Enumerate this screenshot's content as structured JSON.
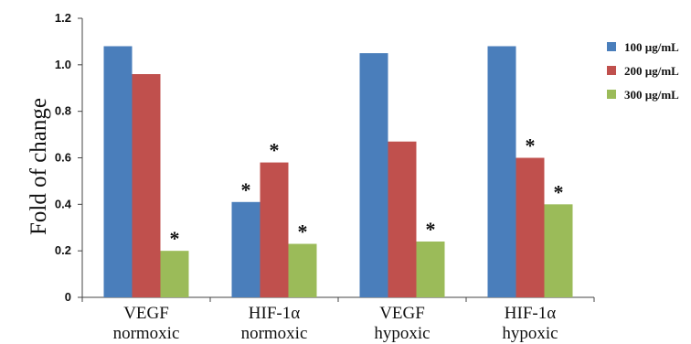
{
  "chart_data": {
    "type": "bar",
    "title": "",
    "xlabel": "",
    "ylabel": "Fold of change",
    "ylim": [
      0,
      1.2
    ],
    "yticks": [
      "0",
      "0.2",
      "0.4",
      "0.6",
      "0.8",
      "1.0",
      "1.2"
    ],
    "ytick_values": [
      0,
      0.2,
      0.4,
      0.6,
      0.8,
      1.0,
      1.2
    ],
    "categories": [
      {
        "line1": "VEGF",
        "line2": "normoxic"
      },
      {
        "line1": "HIF-1α",
        "line2": "normoxic"
      },
      {
        "line1": "VEGF",
        "line2": "hypoxic"
      },
      {
        "line1": "HIF-1α",
        "line2": "hypoxic"
      }
    ],
    "series": [
      {
        "name": "100 µg/mL",
        "color": "#4a7ebb",
        "values": [
          1.08,
          0.41,
          1.05,
          1.08
        ],
        "significant": [
          false,
          true,
          false,
          false
        ]
      },
      {
        "name": "200 µg/mL",
        "color": "#c0504d",
        "values": [
          0.96,
          0.58,
          0.67,
          0.6
        ],
        "significant": [
          false,
          true,
          false,
          true
        ]
      },
      {
        "name": "300 µg/mL",
        "color": "#9bbb59",
        "values": [
          0.2,
          0.23,
          0.24,
          0.4
        ],
        "significant": [
          true,
          true,
          true,
          true
        ]
      }
    ],
    "significance_marker": "*",
    "legend_position": "right",
    "grid": false
  }
}
